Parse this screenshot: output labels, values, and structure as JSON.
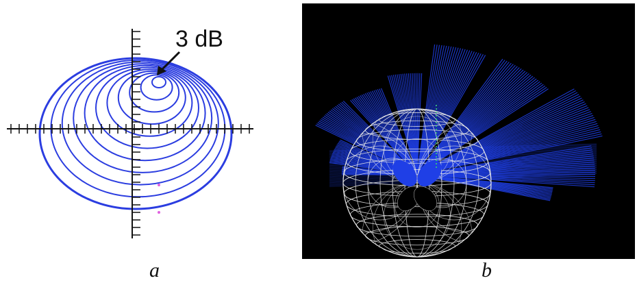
{
  "panels": {
    "a": {
      "caption": "a",
      "annotation": "3 dB"
    },
    "b": {
      "caption": "b"
    }
  },
  "colors": {
    "contour": "#2b3de0",
    "axis": "#111111",
    "beam": "#1f3fe6",
    "sphere_wire": "#e8e8e8",
    "background_b": "#000000"
  },
  "icons": [
    "arrow-icon"
  ]
}
